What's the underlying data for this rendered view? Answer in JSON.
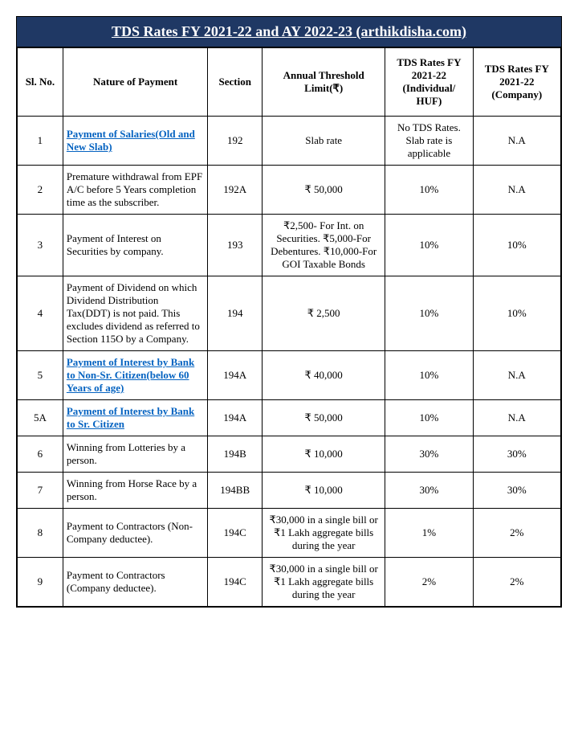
{
  "title": "TDS Rates FY 2021-22 and AY 2022-23 (arthikdisha.com)",
  "columns": {
    "sl": "Sl. No.",
    "nature": "Nature of Payment",
    "section": "Section",
    "limit": "Annual Threshold Limit(₹)",
    "ind": "TDS Rates FY 2021-22 (Individual/ HUF)",
    "comp": "TDS Rates FY 2021-22 (Company)"
  },
  "rows": [
    {
      "sl": "1",
      "nature": "Payment of Salaries(Old and New Slab)",
      "link": true,
      "section": "192",
      "limit": "Slab rate",
      "ind": "No TDS Rates. Slab rate is applicable",
      "comp": "N.A"
    },
    {
      "sl": "2",
      "nature": "Premature withdrawal from EPF A/C before 5 Years completion time as the subscriber.",
      "link": false,
      "section": "192A",
      "limit": "₹ 50,000",
      "ind": "10%",
      "comp": "N.A"
    },
    {
      "sl": "3",
      "nature": "Payment of Interest on Securities by company.",
      "link": false,
      "section": "193",
      "limit": "₹2,500- For Int. on Securities.  ₹5,000-For Debentures. ₹10,000-For GOI Taxable Bonds",
      "ind": "10%",
      "comp": "10%"
    },
    {
      "sl": "4",
      "nature": "Payment of Dividend on which Dividend Distribution Tax(DDT) is not paid. This excludes dividend as referred to Section 115O by a Company.",
      "link": false,
      "section": "194",
      "limit": "₹ 2,500",
      "ind": "10%",
      "comp": "10%"
    },
    {
      "sl": "5",
      "nature": "Payment of Interest by Bank to Non-Sr. Citizen(below 60 Years of age)",
      "link": true,
      "section": "194A",
      "limit": "₹ 40,000",
      "ind": "10%",
      "comp": "N.A"
    },
    {
      "sl": "5A",
      "nature": "Payment of Interest by Bank to Sr. Citizen",
      "link": true,
      "section": "194A",
      "limit": "₹ 50,000",
      "ind": "10%",
      "comp": "N.A"
    },
    {
      "sl": "6",
      "nature": "Winning from Lotteries by a person.",
      "link": false,
      "section": "194B",
      "limit": "₹ 10,000",
      "ind": "30%",
      "comp": "30%"
    },
    {
      "sl": "7",
      "nature": "Winning from Horse Race by a person.",
      "link": false,
      "section": "194BB",
      "limit": "₹ 10,000",
      "ind": "30%",
      "comp": "30%"
    },
    {
      "sl": "8",
      "nature": "Payment to Contractors (Non-Company deductee).",
      "link": false,
      "section": "194C",
      "limit": "₹30,000 in a single bill or ₹1 Lakh aggregate bills during the year",
      "ind": "1%",
      "comp": "2%"
    },
    {
      "sl": "9",
      "nature": "Payment to Contractors (Company deductee).",
      "link": false,
      "section": "194C",
      "limit": "₹30,000 in a single bill or ₹1 Lakh aggregate bills during the year",
      "ind": "2%",
      "comp": "2%"
    }
  ]
}
